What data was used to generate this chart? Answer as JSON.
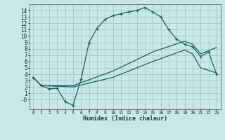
{
  "xlabel": "Humidex (Indice chaleur)",
  "background_color": "#c8e8e8",
  "grid_color": "#a8cccc",
  "line_color": "#1a6060",
  "xlim": [
    -0.5,
    23.5
  ],
  "ylim": [
    -1.5,
    15.0
  ],
  "xtick_labels": [
    "0",
    "1",
    "2",
    "3",
    "4",
    "5",
    "6",
    "7",
    "8",
    "9",
    "10",
    "11",
    "12",
    "13",
    "14",
    "15",
    "16",
    "17",
    "18",
    "19",
    "20",
    "21",
    "22",
    "23"
  ],
  "ytick_labels": [
    "-0",
    "1",
    "2",
    "3",
    "4",
    "5",
    "6",
    "7",
    "8",
    "9",
    "10",
    "11",
    "12",
    "13",
    "14"
  ],
  "ytick_vals": [
    0,
    1,
    2,
    3,
    4,
    5,
    6,
    7,
    8,
    9,
    10,
    11,
    12,
    13,
    14
  ],
  "line1_x": [
    0,
    1,
    2,
    3,
    4,
    5,
    6,
    7,
    8,
    9,
    10,
    11,
    12,
    13,
    14,
    15,
    16,
    17,
    18,
    19,
    20,
    21,
    22,
    23
  ],
  "line1_y": [
    3.5,
    2.2,
    1.7,
    1.8,
    -0.3,
    -0.9,
    3.2,
    9.0,
    11.2,
    12.6,
    13.2,
    13.5,
    13.8,
    14.0,
    14.5,
    13.8,
    13.0,
    11.0,
    9.5,
    8.7,
    8.3,
    6.8,
    7.5,
    4.0
  ],
  "line2_x": [
    0,
    1,
    5,
    10,
    15,
    19,
    20,
    21,
    23
  ],
  "line2_y": [
    3.5,
    2.2,
    2.2,
    4.5,
    7.5,
    9.2,
    8.7,
    7.2,
    8.2
  ],
  "line3_x": [
    0,
    1,
    5,
    10,
    15,
    19,
    20,
    21,
    23
  ],
  "line3_y": [
    3.5,
    2.2,
    2.0,
    3.5,
    6.0,
    7.8,
    7.2,
    5.0,
    4.2
  ]
}
